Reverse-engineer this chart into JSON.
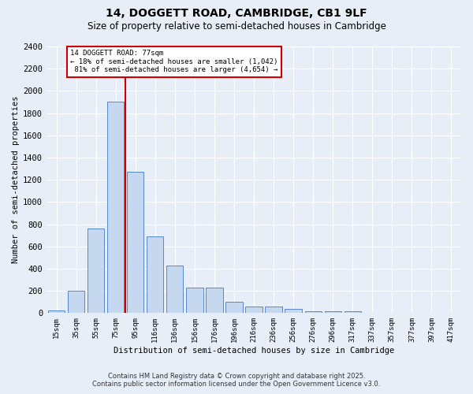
{
  "title": "14, DOGGETT ROAD, CAMBRIDGE, CB1 9LF",
  "subtitle": "Size of property relative to semi-detached houses in Cambridge",
  "xlabel": "Distribution of semi-detached houses by size in Cambridge",
  "ylabel": "Number of semi-detached properties",
  "categories": [
    "15sqm",
    "35sqm",
    "55sqm",
    "75sqm",
    "95sqm",
    "116sqm",
    "136sqm",
    "156sqm",
    "176sqm",
    "196sqm",
    "216sqm",
    "236sqm",
    "256sqm",
    "276sqm",
    "296sqm",
    "317sqm",
    "337sqm",
    "357sqm",
    "377sqm",
    "397sqm",
    "417sqm"
  ],
  "values": [
    25,
    200,
    760,
    1900,
    1270,
    690,
    430,
    230,
    230,
    100,
    60,
    60,
    35,
    20,
    20,
    15,
    5,
    5,
    0,
    0,
    0
  ],
  "bar_color": "#c5d8f0",
  "bar_edge_color": "#5588cc",
  "background_color": "#e8eef8",
  "property_index": 3,
  "property_label": "14 DOGGETT ROAD: 77sqm",
  "pct_smaller": "18%",
  "pct_larger": "81%",
  "n_smaller": "1,042",
  "n_larger": "4,654",
  "red_line_color": "#cc0000",
  "annotation_box_edge": "#cc0000",
  "ylim": [
    0,
    2400
  ],
  "yticks": [
    0,
    200,
    400,
    600,
    800,
    1000,
    1200,
    1400,
    1600,
    1800,
    2000,
    2200,
    2400
  ],
  "footer1": "Contains HM Land Registry data © Crown copyright and database right 2025.",
  "footer2": "Contains public sector information licensed under the Open Government Licence v3.0."
}
